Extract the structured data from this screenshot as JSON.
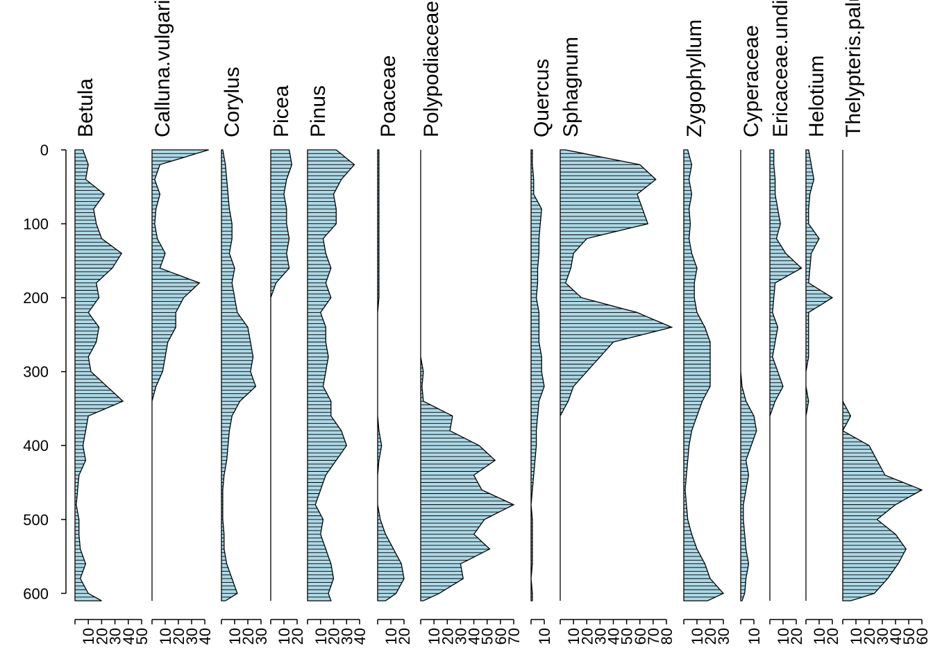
{
  "chart_data": {
    "type": "area",
    "chart_style": "pollen stratigraphic diagram (silhouette curves with horizontal bars)",
    "fill_color": "#add8e6",
    "line_color": "#000000",
    "y_axis": {
      "ticks": [
        0,
        100,
        200,
        300,
        400,
        500,
        600
      ],
      "range": [
        0,
        610
      ],
      "reversed": true
    },
    "depths": [
      0,
      20,
      40,
      60,
      80,
      100,
      120,
      140,
      160,
      180,
      200,
      220,
      240,
      260,
      280,
      300,
      320,
      340,
      360,
      380,
      400,
      420,
      440,
      460,
      480,
      500,
      520,
      540,
      560,
      580,
      600,
      610
    ],
    "series": [
      {
        "name": "Betula",
        "xlim": [
          0,
          50
        ],
        "ticks": [
          10,
          20,
          30,
          40,
          50
        ],
        "values": [
          6,
          10,
          8,
          22,
          14,
          16,
          20,
          35,
          28,
          16,
          18,
          10,
          18,
          16,
          10,
          12,
          24,
          36,
          10,
          8,
          6,
          8,
          3,
          2,
          1,
          3,
          3,
          4,
          8,
          4,
          10,
          20
        ]
      },
      {
        "name": "Calluna.vulgaris",
        "xlim": [
          0,
          40
        ],
        "ticks": [
          10,
          20,
          30,
          40
        ],
        "values": [
          43,
          6,
          2,
          6,
          3,
          2,
          4,
          10,
          6,
          36,
          24,
          18,
          18,
          12,
          10,
          8,
          3,
          0,
          0,
          0,
          0,
          0,
          0,
          0,
          0,
          0,
          0,
          0,
          0,
          0,
          0,
          0
        ]
      },
      {
        "name": "Corylus",
        "xlim": [
          0,
          30
        ],
        "ticks": [
          10,
          20,
          30
        ],
        "values": [
          1,
          3,
          4,
          5,
          6,
          8,
          8,
          6,
          10,
          8,
          10,
          12,
          20,
          22,
          24,
          22,
          26,
          14,
          8,
          6,
          5,
          4,
          2,
          1,
          1,
          1,
          2,
          2,
          4,
          8,
          12,
          3
        ]
      },
      {
        "name": "Picea",
        "xlim": [
          0,
          20
        ],
        "ticks": [
          10,
          20
        ],
        "values": [
          14,
          16,
          12,
          10,
          12,
          12,
          14,
          12,
          14,
          4,
          0,
          0,
          0,
          0,
          0,
          0,
          0,
          0,
          0,
          0,
          0,
          0,
          0,
          0,
          0,
          0,
          0,
          0,
          0,
          0,
          0,
          0
        ]
      },
      {
        "name": "Pinus",
        "xlim": [
          0,
          40
        ],
        "ticks": [
          10,
          20,
          30,
          40
        ],
        "values": [
          22,
          36,
          26,
          20,
          22,
          22,
          12,
          14,
          18,
          14,
          18,
          10,
          14,
          14,
          16,
          14,
          12,
          18,
          18,
          26,
          30,
          22,
          14,
          10,
          6,
          12,
          10,
          14,
          18,
          20,
          16,
          18
        ]
      },
      {
        "name": "Poaceae",
        "xlim": [
          0,
          20
        ],
        "ticks": [
          10,
          20
        ],
        "values": [
          1,
          1,
          1,
          1,
          1,
          1,
          1,
          1,
          1,
          1,
          1,
          0,
          0,
          0,
          0,
          0,
          0,
          0,
          0,
          1,
          3,
          1,
          0,
          0,
          0,
          2,
          6,
          12,
          18,
          20,
          14,
          6
        ]
      },
      {
        "name": "Polypodiaceae",
        "xlim": [
          0,
          70
        ],
        "ticks": [
          10,
          20,
          30,
          40,
          50,
          60,
          70
        ],
        "values": [
          0,
          0,
          0,
          0,
          0,
          0,
          0,
          0,
          0,
          0,
          0,
          0,
          0,
          0,
          0,
          2,
          1,
          2,
          24,
          22,
          44,
          56,
          40,
          46,
          70,
          48,
          40,
          52,
          30,
          32,
          14,
          2
        ]
      },
      {
        "name": "Quercus",
        "xlim": [
          0,
          10
        ],
        "ticks": [
          10
        ],
        "values": [
          1,
          1,
          2,
          2,
          8,
          7,
          6,
          6,
          5,
          5,
          4,
          6,
          6,
          6,
          8,
          8,
          10,
          6,
          5,
          4,
          4,
          3,
          2,
          1,
          0,
          1,
          1,
          1,
          1,
          0,
          1,
          1
        ]
      },
      {
        "name": "Sphagnum",
        "xlim": [
          0,
          80
        ],
        "ticks": [
          10,
          20,
          30,
          40,
          50,
          60,
          70,
          80
        ],
        "values": [
          4,
          60,
          72,
          58,
          62,
          66,
          20,
          10,
          8,
          4,
          16,
          58,
          84,
          40,
          30,
          20,
          10,
          6,
          0,
          0,
          0,
          0,
          0,
          0,
          0,
          0,
          0,
          0,
          0,
          0,
          0,
          0
        ]
      },
      {
        "name": "Zygophyllum",
        "xlim": [
          0,
          30
        ],
        "ticks": [
          10,
          20,
          30
        ],
        "values": [
          3,
          6,
          4,
          6,
          4,
          5,
          4,
          6,
          10,
          8,
          8,
          10,
          16,
          20,
          20,
          20,
          20,
          14,
          10,
          6,
          4,
          3,
          2,
          1,
          2,
          3,
          6,
          10,
          16,
          20,
          30,
          18
        ]
      },
      {
        "name": "Cyperaceae",
        "xlim": [
          0,
          10
        ],
        "ticks": [
          10
        ],
        "values": [
          0,
          0,
          0,
          0,
          0,
          0,
          0,
          0,
          0,
          0,
          0,
          0,
          0,
          0,
          0,
          0,
          1,
          4,
          10,
          12,
          8,
          4,
          6,
          4,
          2,
          2,
          3,
          4,
          6,
          4,
          3,
          1
        ]
      },
      {
        "name": "Ericaceae.undiff",
        "xlim": [
          0,
          20
        ],
        "ticks": [
          10,
          20
        ],
        "values": [
          3,
          3,
          4,
          4,
          6,
          8,
          5,
          12,
          24,
          4,
          3,
          2,
          6,
          4,
          2,
          6,
          10,
          4,
          0,
          0,
          0,
          0,
          0,
          0,
          0,
          0,
          0,
          0,
          0,
          0,
          0,
          0
        ]
      },
      {
        "name": "Helotium",
        "xlim": [
          0,
          20
        ],
        "ticks": [
          10,
          20
        ],
        "values": [
          2,
          4,
          6,
          3,
          2,
          2,
          10,
          4,
          3,
          2,
          20,
          2,
          2,
          2,
          2,
          0,
          0,
          2,
          0,
          0,
          0,
          0,
          0,
          0,
          0,
          0,
          0,
          0,
          0,
          0,
          0,
          0
        ]
      },
      {
        "name": "Thelypteris.palustris",
        "xlim": [
          0,
          60
        ],
        "ticks": [
          10,
          20,
          30,
          40,
          50,
          60
        ],
        "values": [
          0,
          0,
          0,
          0,
          0,
          0,
          0,
          0,
          0,
          0,
          0,
          0,
          0,
          0,
          0,
          0,
          0,
          0,
          6,
          0,
          20,
          26,
          32,
          60,
          40,
          26,
          40,
          48,
          42,
          34,
          24,
          6
        ]
      }
    ]
  }
}
